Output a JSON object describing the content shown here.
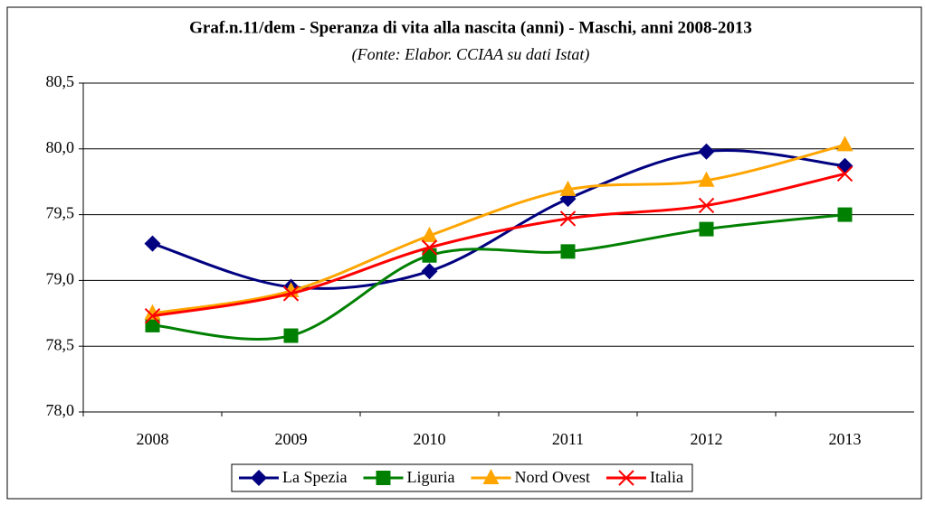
{
  "chart_data": {
    "type": "line",
    "title": "Graf.n.11/dem - Speranza di vita alla nascita (anni) - Maschi, anni 2008-2013",
    "subtitle": "(Fonte: Elabor. CCIAA su dati Istat)",
    "categories": [
      "2008",
      "2009",
      "2010",
      "2011",
      "2012",
      "2013"
    ],
    "series": [
      {
        "name": "La Spezia",
        "color": "#000080",
        "marker": "diamond",
        "values": [
          79.28,
          78.95,
          79.07,
          79.62,
          79.98,
          79.87
        ]
      },
      {
        "name": "Liguria",
        "color": "#008000",
        "marker": "square",
        "values": [
          78.66,
          78.58,
          79.19,
          79.22,
          79.39,
          79.5
        ]
      },
      {
        "name": "Nord Ovest",
        "color": "#ffa500",
        "marker": "triangle",
        "values": [
          78.75,
          78.92,
          79.34,
          79.69,
          79.76,
          80.03
        ]
      },
      {
        "name": "Italia",
        "color": "#ff0000",
        "marker": "x",
        "values": [
          78.73,
          78.9,
          79.25,
          79.47,
          79.57,
          79.81
        ]
      }
    ],
    "ylim": [
      78,
      80.5
    ],
    "yticks": [
      {
        "value": 78,
        "label": "78,0"
      },
      {
        "value": 78.5,
        "label": "78,5"
      },
      {
        "value": 79,
        "label": "79,0"
      },
      {
        "value": 79.5,
        "label": "79,5"
      },
      {
        "value": 80,
        "label": "80,0"
      },
      {
        "value": 80.5,
        "label": "80,5"
      }
    ],
    "grid": true,
    "legend": "bottom",
    "smooth": true
  }
}
